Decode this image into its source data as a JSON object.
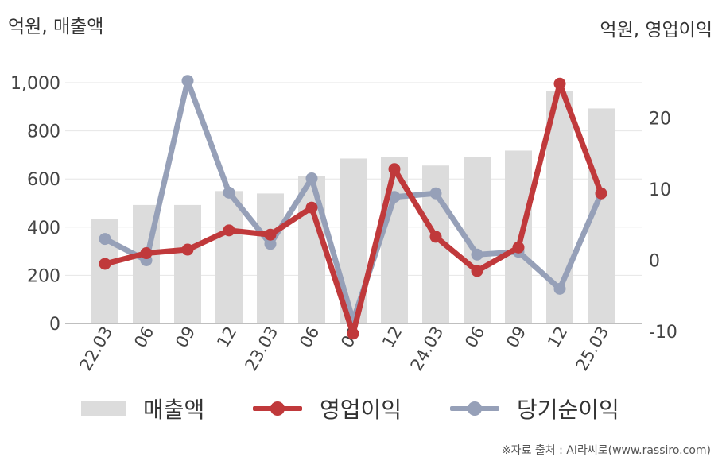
{
  "units": {
    "left": "억원, 매출액",
    "right": "억원, 영업이익"
  },
  "legend": {
    "revenue": "매출액",
    "operating_profit": "영업이익",
    "net_income": "당기순이익"
  },
  "source": "※자료 출처 : AI라씨로(www.rassiro.com)",
  "colors": {
    "revenue": "#dcdcdc",
    "operating_profit": "#c0393b",
    "net_income": "#96a0b8",
    "grid": "#e6e6e6",
    "axis": "#aaaaaa"
  },
  "chart_data": {
    "type": "bar",
    "categories": [
      "22.03",
      "06",
      "09",
      "12",
      "23.03",
      "06",
      "09",
      "12",
      "24.03",
      "06",
      "09",
      "12",
      "25.03"
    ],
    "series": [
      {
        "name": "매출액",
        "type": "bar",
        "axis": "left",
        "values": [
          433,
          492,
          492,
          550,
          540,
          612,
          685,
          692,
          656,
          692,
          718,
          964,
          893
        ]
      },
      {
        "name": "영업이익",
        "type": "line",
        "axis": "right",
        "values": [
          -0.5,
          1.0,
          1.5,
          4.2,
          3.6,
          7.4,
          -10.3,
          12.8,
          3.3,
          -1.5,
          1.8,
          24.8,
          9.4
        ]
      },
      {
        "name": "당기순이익",
        "type": "line",
        "axis": "right",
        "values": [
          3.0,
          0.0,
          25.2,
          9.5,
          2.3,
          11.5,
          -8.5,
          8.9,
          9.4,
          0.8,
          1.2,
          -4.0,
          9.4
        ]
      }
    ],
    "left_axis": {
      "ylim": [
        0,
        1000
      ],
      "ticks": [
        0,
        200,
        400,
        600,
        800,
        1000
      ],
      "tick_labels": [
        "0",
        "200",
        "400",
        "600",
        "800",
        "1,000"
      ]
    },
    "right_axis": {
      "ylim": [
        -12,
        25.5
      ],
      "ticks": [
        -10,
        0,
        10,
        20
      ],
      "tick_labels": [
        "-10",
        "0",
        "10",
        "20"
      ]
    },
    "grid": true,
    "legend_position": "bottom"
  }
}
